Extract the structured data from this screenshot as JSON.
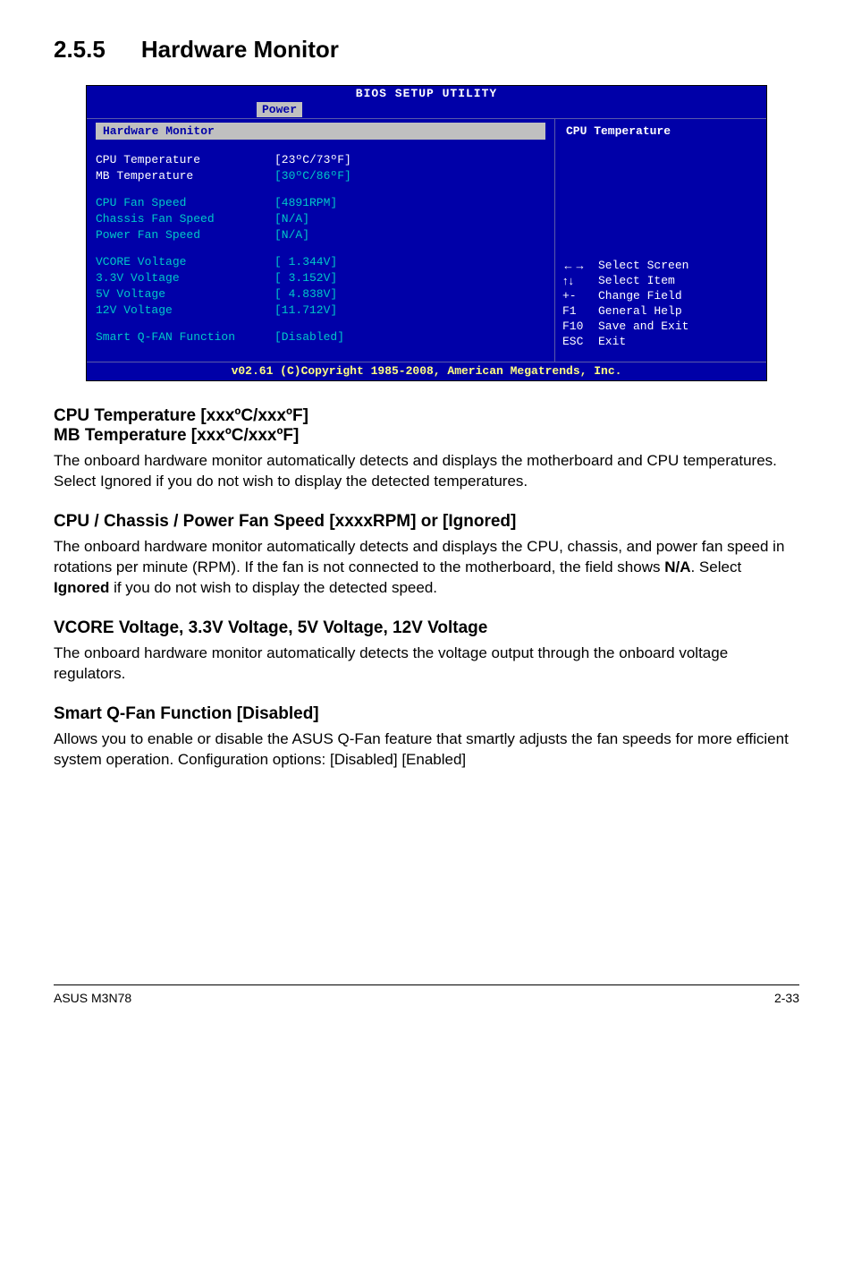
{
  "section": {
    "number": "2.5.5",
    "title": "Hardware Monitor"
  },
  "bios": {
    "title": "BIOS SETUP UTILITY",
    "tab": "Power",
    "panel_header": "Hardware Monitor",
    "help_title": "CPU Temperature",
    "rows": [
      {
        "label": "CPU Temperature",
        "value": "[23ºC/73ºF]"
      },
      {
        "label": "MB Temperature",
        "value": "[30ºC/86ºF]"
      }
    ],
    "fan_rows": [
      {
        "label": "CPU Fan Speed",
        "value": "[4891RPM]"
      },
      {
        "label": "Chassis Fan Speed",
        "value": "[N/A]"
      },
      {
        "label": "Power Fan Speed",
        "value": "[N/A]"
      }
    ],
    "volt_rows": [
      {
        "label": "VCORE Voltage",
        "value": "[ 1.344V]"
      },
      {
        "label": "3.3V Voltage",
        "value": "[ 3.152V]"
      },
      {
        "label": "5V Voltage",
        "value": "[ 4.838V]"
      },
      {
        "label": "12V Voltage",
        "value": "[11.712V]"
      }
    ],
    "qfan": {
      "label": "Smart Q-FAN Function",
      "value": "[Disabled]"
    },
    "nav": [
      {
        "key": "←→",
        "desc": "Select Screen"
      },
      {
        "key": "↑↓",
        "desc": "Select Item"
      },
      {
        "key": "+-",
        "desc": "Change Field"
      },
      {
        "key": "F1",
        "desc": "General Help"
      },
      {
        "key": "F10",
        "desc": "Save and Exit"
      },
      {
        "key": "ESC",
        "desc": "Exit"
      }
    ],
    "footer": "v02.61 (C)Copyright 1985-2008, American Megatrends, Inc."
  },
  "content": {
    "t1a": "CPU Temperature [xxxºC/xxxºF]",
    "t1b": "MB Temperature [xxxºC/xxxºF]",
    "p1": "The onboard hardware monitor automatically detects and displays the motherboard and CPU temperatures. Select Ignored if you do not wish to display the detected temperatures.",
    "t2": "CPU / Chassis / Power Fan Speed [xxxxRPM] or [Ignored]",
    "p2": "The onboard hardware monitor automatically detects and displays the CPU, chassis, and power fan speed in rotations per minute (RPM). If the fan is not connected to the motherboard, the field shows N/A. Select Ignored if you do not wish to display the detected speed.",
    "t3": "VCORE Voltage, 3.3V Voltage, 5V Voltage, 12V Voltage",
    "p3": "The onboard hardware monitor automatically detects the voltage output through the onboard voltage regulators.",
    "t4": "Smart Q-Fan Function [Disabled]",
    "p4": "Allows you to enable or disable the ASUS Q-Fan feature that smartly adjusts the fan speeds for more efficient system operation. Configuration options: [Disabled] [Enabled]"
  },
  "footer": {
    "left": "ASUS M3N78",
    "right": "2-33"
  }
}
